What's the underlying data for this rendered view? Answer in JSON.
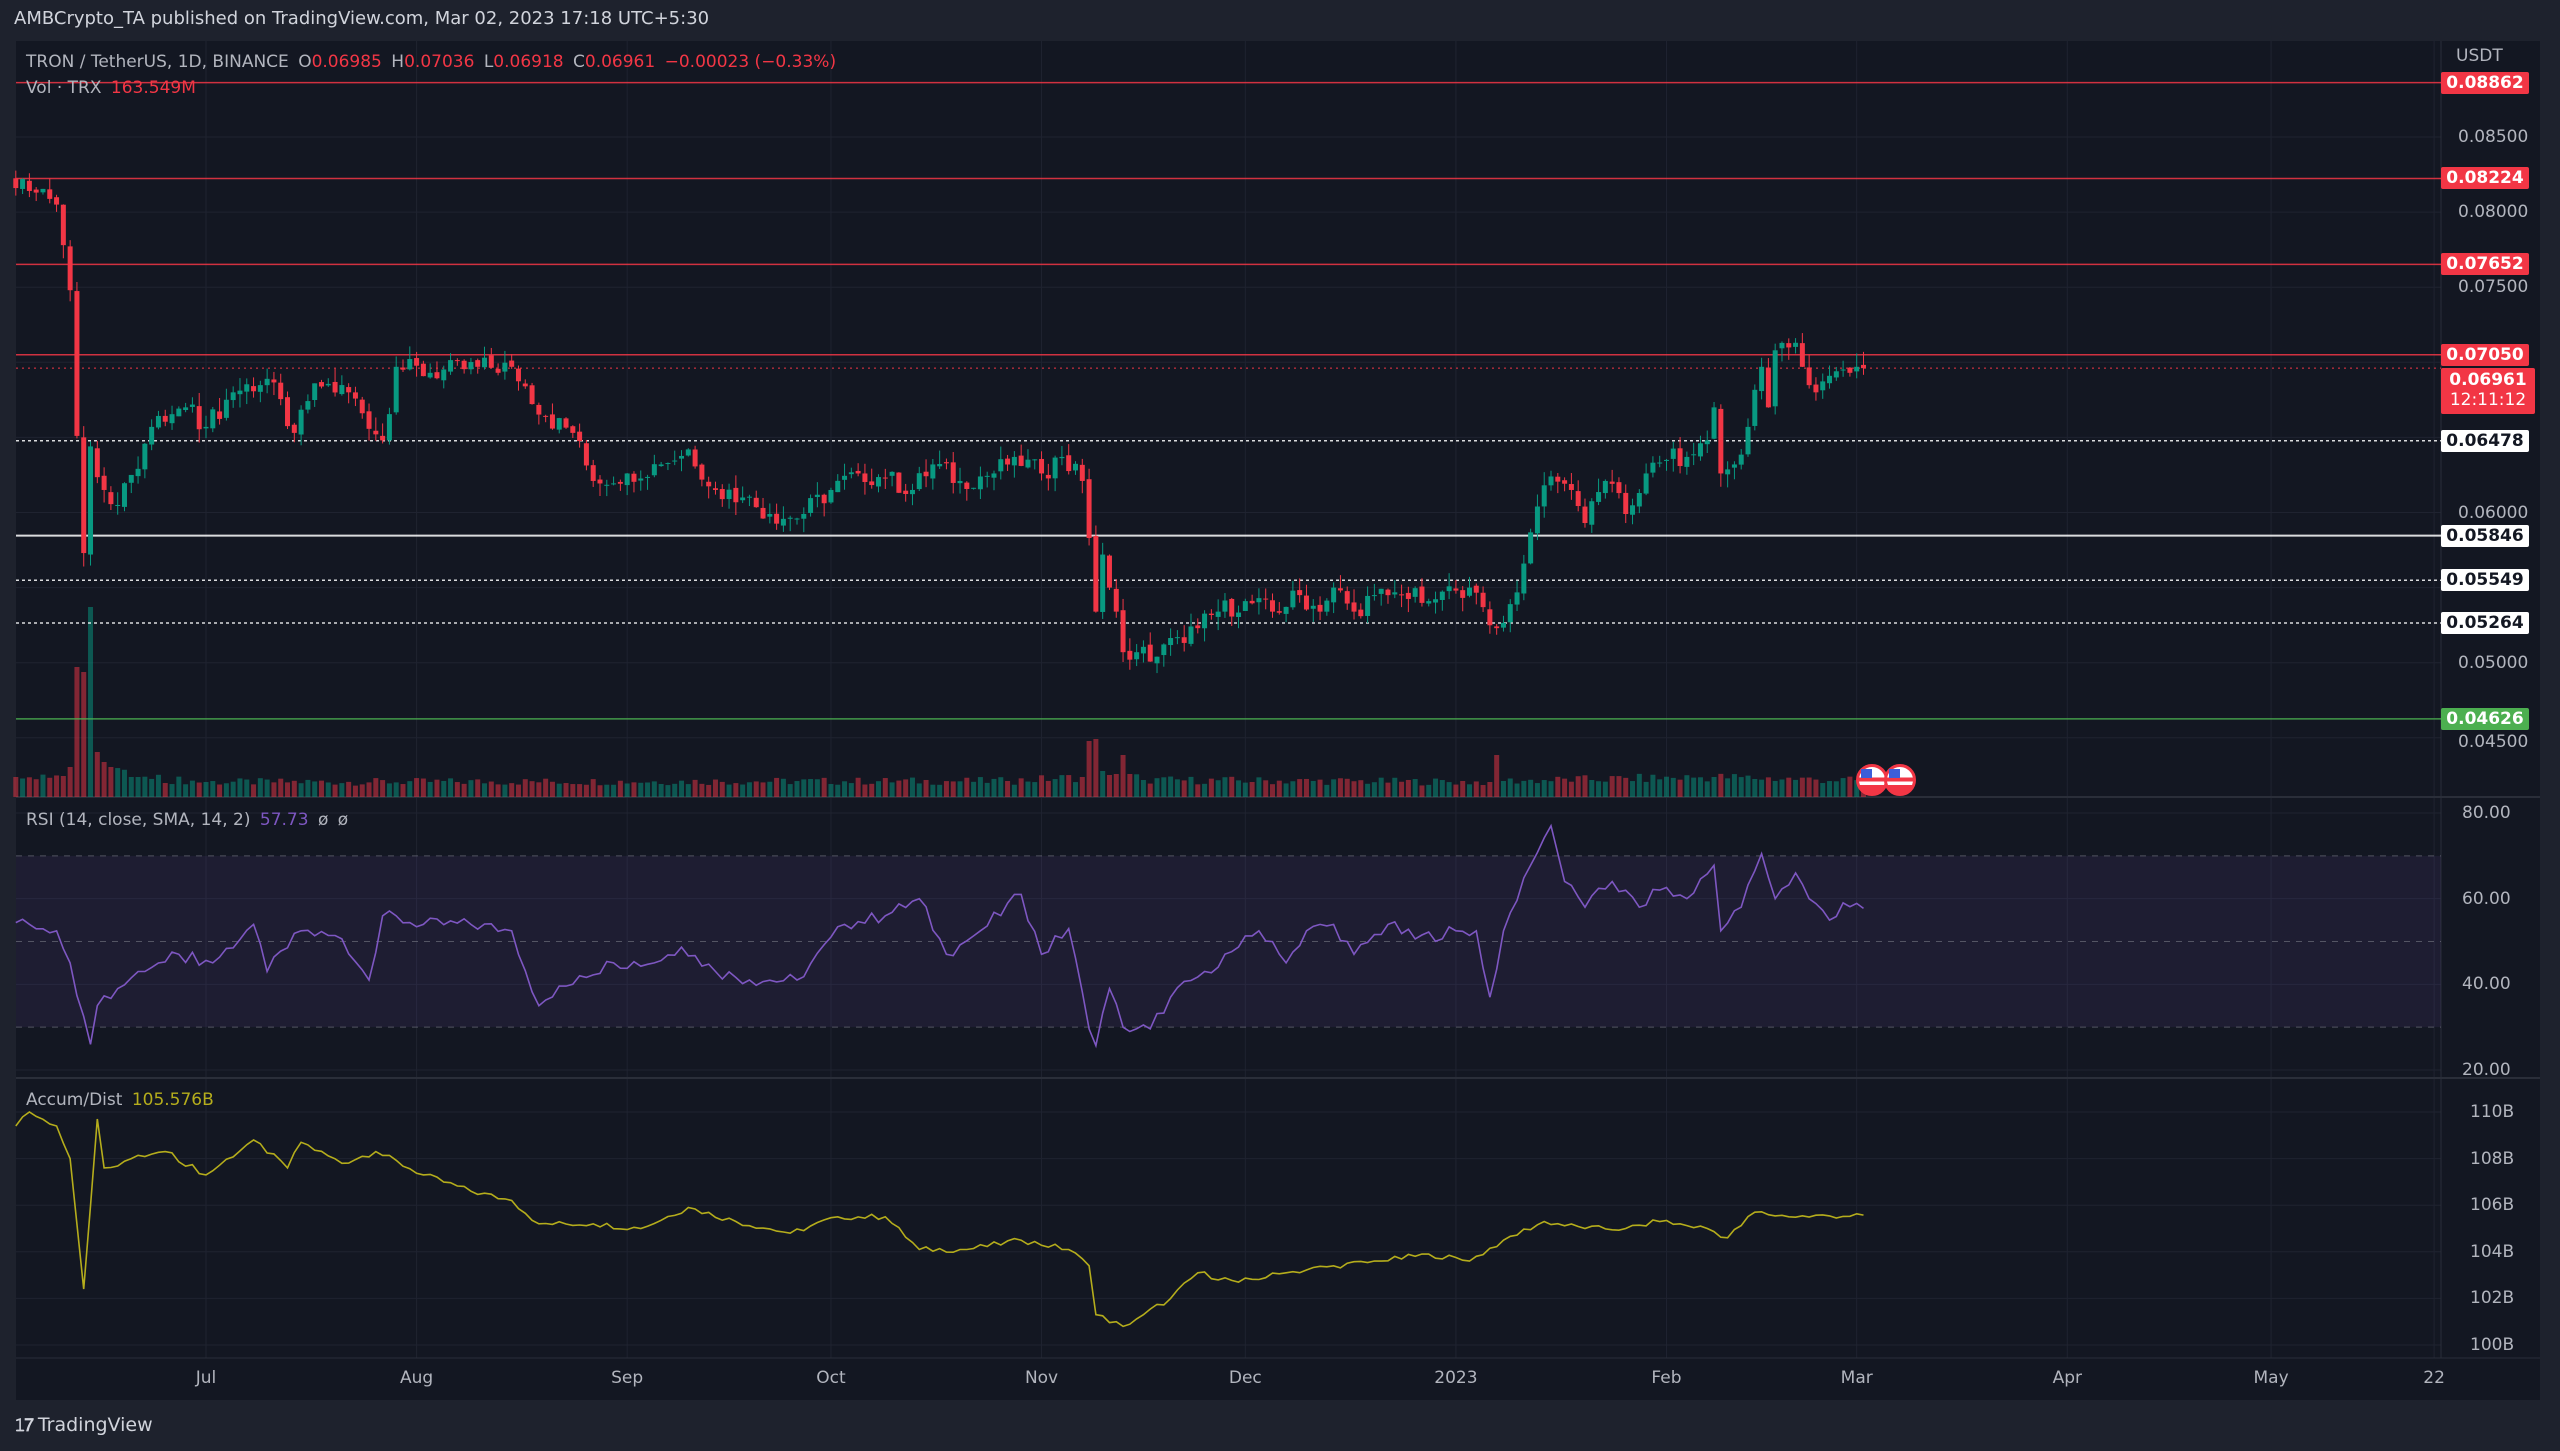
{
  "published": "AMBCrypto_TA published on TradingView.com, Mar 02, 2023 17:18 UTC+5:30",
  "legend": {
    "symbol": "TRON / TetherUS, 1D, BINANCE",
    "o_label": "O",
    "o": "0.06985",
    "h_label": "H",
    "h": "0.07036",
    "l_label": "L",
    "l": "0.06918",
    "c_label": "C",
    "c": "0.06961",
    "change": "−0.00023 (−0.33%)",
    "vol_label": "Vol · TRX",
    "vol": "163.549M"
  },
  "rsi": {
    "label": "RSI (14, close, SMA, 14, 2)",
    "value": "57.73",
    "na1": "ø",
    "na2": "ø",
    "ticks": [
      "80.00",
      "60.00",
      "40.00",
      "20.00"
    ]
  },
  "ad": {
    "label": "Accum/Dist",
    "value": "105.576B",
    "ticks": [
      "110B",
      "108B",
      "106B",
      "104B",
      "102B",
      "100B"
    ]
  },
  "price_axis": {
    "unit": "USDT",
    "ticks": [
      "0.08500",
      "0.08000",
      "0.07500",
      "0.06000",
      "0.05000",
      "0.04500"
    ]
  },
  "levels": [
    {
      "value": "0.08862",
      "color": "#f23645",
      "style": "solid"
    },
    {
      "value": "0.08224",
      "color": "#f23645",
      "style": "solid"
    },
    {
      "value": "0.07652",
      "color": "#f23645",
      "style": "solid"
    },
    {
      "value": "0.07050",
      "color": "#f23645",
      "style": "solid"
    },
    {
      "value": "0.06478",
      "color": "#ffffff",
      "style": "dotted"
    },
    {
      "value": "0.05846",
      "color": "#ffffff",
      "style": "solid"
    },
    {
      "value": "0.05549",
      "color": "#ffffff",
      "style": "dotted"
    },
    {
      "value": "0.05264",
      "color": "#ffffff",
      "style": "dotted"
    },
    {
      "value": "0.04626",
      "color": "#4caf50",
      "style": "solid"
    }
  ],
  "current": {
    "price": "0.06961",
    "countdown": "12:11:12"
  },
  "time_axis": [
    "Jul",
    "Aug",
    "Sep",
    "Oct",
    "Nov",
    "Dec",
    "2023",
    "Feb",
    "Mar",
    "Apr",
    "May",
    "22"
  ],
  "footer": {
    "logo": "TradingView"
  },
  "colors": {
    "up": "#089981",
    "down": "#f23645",
    "rsi": "#7e57c2",
    "ad": "#b5ad1c",
    "bg": "#131722"
  },
  "chart_data": {
    "type": "candlestick",
    "close_keypoints": [
      [
        "2022-06-03",
        0.0816
      ],
      [
        "2022-06-06",
        0.0813
      ],
      [
        "2022-06-09",
        0.0805
      ],
      [
        "2022-06-10",
        0.0778
      ],
      [
        "2022-06-11",
        0.0748
      ],
      [
        "2022-06-12",
        0.0651
      ],
      [
        "2022-06-13",
        0.0573
      ],
      [
        "2022-06-14",
        0.0644
      ],
      [
        "2022-06-16",
        0.0615
      ],
      [
        "2022-06-18",
        0.0605
      ],
      [
        "2022-06-20",
        0.0625
      ],
      [
        "2022-06-23",
        0.0657
      ],
      [
        "2022-06-28",
        0.067
      ],
      [
        "2022-07-01",
        0.0657
      ],
      [
        "2022-07-05",
        0.068
      ],
      [
        "2022-07-10",
        0.0689
      ],
      [
        "2022-07-14",
        0.0653
      ],
      [
        "2022-07-17",
        0.0686
      ],
      [
        "2022-07-22",
        0.068
      ],
      [
        "2022-07-27",
        0.0648
      ],
      [
        "2022-07-29",
        0.0697
      ],
      [
        "2022-08-03",
        0.0693
      ],
      [
        "2022-08-10",
        0.0697
      ],
      [
        "2022-08-15",
        0.0697
      ],
      [
        "2022-08-20",
        0.0664
      ],
      [
        "2022-08-24",
        0.0653
      ],
      [
        "2022-08-27",
        0.0621
      ],
      [
        "2022-09-01",
        0.0626
      ],
      [
        "2022-09-06",
        0.0632
      ],
      [
        "2022-09-10",
        0.0642
      ],
      [
        "2022-09-14",
        0.0615
      ],
      [
        "2022-09-18",
        0.061
      ],
      [
        "2022-09-22",
        0.0599
      ],
      [
        "2022-09-26",
        0.0596
      ],
      [
        "2022-10-01",
        0.0615
      ],
      [
        "2022-10-05",
        0.0626
      ],
      [
        "2022-10-09",
        0.0623
      ],
      [
        "2022-10-13",
        0.0615
      ],
      [
        "2022-10-16",
        0.0632
      ],
      [
        "2022-10-20",
        0.0621
      ],
      [
        "2022-10-25",
        0.0626
      ],
      [
        "2022-10-28",
        0.0637
      ],
      [
        "2022-11-01",
        0.0626
      ],
      [
        "2022-11-04",
        0.0637
      ],
      [
        "2022-11-07",
        0.0621
      ],
      [
        "2022-11-08",
        0.0583
      ],
      [
        "2022-11-09",
        0.0534
      ],
      [
        "2022-11-10",
        0.0572
      ],
      [
        "2022-11-11",
        0.055
      ],
      [
        "2022-11-12",
        0.0534
      ],
      [
        "2022-11-13",
        0.0507
      ],
      [
        "2022-11-15",
        0.0507
      ],
      [
        "2022-11-18",
        0.0504
      ],
      [
        "2022-11-21",
        0.0517
      ],
      [
        "2022-11-24",
        0.0523
      ],
      [
        "2022-11-27",
        0.0534
      ],
      [
        "2022-12-01",
        0.0541
      ],
      [
        "2022-12-05",
        0.0534
      ],
      [
        "2022-12-09",
        0.0545
      ],
      [
        "2022-12-12",
        0.0534
      ],
      [
        "2022-12-14",
        0.055
      ],
      [
        "2022-12-17",
        0.0534
      ],
      [
        "2022-12-20",
        0.0545
      ],
      [
        "2022-12-24",
        0.0545
      ],
      [
        "2022-12-28",
        0.0541
      ],
      [
        "2023-01-01",
        0.0548
      ],
      [
        "2023-01-03",
        0.055
      ],
      [
        "2023-01-05",
        0.0537
      ],
      [
        "2023-01-07",
        0.0523
      ],
      [
        "2023-01-09",
        0.0539
      ],
      [
        "2023-01-11",
        0.0566
      ],
      [
        "2023-01-13",
        0.0604
      ],
      [
        "2023-01-15",
        0.0624
      ],
      [
        "2023-01-18",
        0.0615
      ],
      [
        "2023-01-20",
        0.0593
      ],
      [
        "2023-01-23",
        0.0621
      ],
      [
        "2023-01-26",
        0.0599
      ],
      [
        "2023-01-29",
        0.0626
      ],
      [
        "2023-02-01",
        0.0635
      ],
      [
        "2023-02-04",
        0.0637
      ],
      [
        "2023-02-07",
        0.0648
      ],
      [
        "2023-02-08",
        0.067
      ],
      [
        "2023-02-09",
        0.0626
      ],
      [
        "2023-02-11",
        0.0632
      ],
      [
        "2023-02-13",
        0.0657
      ],
      [
        "2023-02-15",
        0.0697
      ],
      [
        "2023-02-16",
        0.067
      ],
      [
        "2023-02-17",
        0.0708
      ],
      [
        "2023-02-20",
        0.0713
      ],
      [
        "2023-02-21",
        0.0697
      ],
      [
        "2023-02-23",
        0.068
      ],
      [
        "2023-02-25",
        0.0691
      ],
      [
        "2023-02-28",
        0.0693
      ],
      [
        "2023-03-01",
        0.0697
      ],
      [
        "2023-03-02",
        0.06961
      ]
    ],
    "volume_keypoints_M": [
      [
        "2022-06-03",
        200
      ],
      [
        "2022-06-10",
        210
      ],
      [
        "2022-06-11",
        300
      ],
      [
        "2022-06-12",
        1300
      ],
      [
        "2022-06-13",
        1250
      ],
      [
        "2022-06-14",
        1900
      ],
      [
        "2022-06-15",
        450
      ],
      [
        "2022-06-16",
        350
      ],
      [
        "2022-06-17",
        300
      ],
      [
        "2022-06-20",
        200
      ],
      [
        "2022-07-01",
        150
      ],
      [
        "2022-10-27",
        160
      ],
      [
        "2022-11-07",
        200
      ],
      [
        "2022-11-08",
        560
      ],
      [
        "2022-11-09",
        580
      ],
      [
        "2022-11-10",
        260
      ],
      [
        "2022-11-11",
        220
      ],
      [
        "2022-11-12",
        230
      ],
      [
        "2022-11-13",
        420
      ],
      [
        "2022-11-14",
        230
      ],
      [
        "2022-11-16",
        170
      ],
      [
        "2023-01-06",
        150
      ],
      [
        "2023-01-07",
        420
      ],
      [
        "2023-01-08",
        160
      ],
      [
        "2023-02-08",
        200
      ],
      [
        "2023-03-02",
        163.549
      ]
    ],
    "rsi_keypoints": [
      [
        "2022-06-03",
        54.4
      ],
      [
        "2022-06-09",
        52.5
      ],
      [
        "2022-06-11",
        45
      ],
      [
        "2022-06-14",
        26
      ],
      [
        "2022-06-15",
        35
      ],
      [
        "2022-06-18",
        39
      ],
      [
        "2022-06-22",
        43
      ],
      [
        "2022-06-27",
        47
      ],
      [
        "2022-07-02",
        45
      ],
      [
        "2022-07-08",
        54
      ],
      [
        "2022-07-10",
        43
      ],
      [
        "2022-07-15",
        52.5
      ],
      [
        "2022-07-21",
        50.6
      ],
      [
        "2022-07-25",
        41
      ],
      [
        "2022-07-27",
        56
      ],
      [
        "2022-08-02",
        54
      ],
      [
        "2022-08-09",
        54
      ],
      [
        "2022-08-15",
        52.5
      ],
      [
        "2022-08-19",
        35
      ],
      [
        "2022-08-25",
        42
      ],
      [
        "2022-08-30",
        45
      ],
      [
        "2022-09-05",
        45
      ],
      [
        "2022-09-09",
        48.7
      ],
      [
        "2022-09-14",
        43
      ],
      [
        "2022-09-19",
        41
      ],
      [
        "2022-09-26",
        41
      ],
      [
        "2022-10-03",
        54
      ],
      [
        "2022-10-09",
        56
      ],
      [
        "2022-10-14",
        60
      ],
      [
        "2022-10-18",
        47
      ],
      [
        "2022-10-23",
        52.5
      ],
      [
        "2022-10-29",
        61
      ],
      [
        "2022-11-01",
        47
      ],
      [
        "2022-11-05",
        53
      ],
      [
        "2022-11-08",
        29.6
      ],
      [
        "2022-11-09",
        25.7
      ],
      [
        "2022-11-11",
        39
      ],
      [
        "2022-11-13",
        30
      ],
      [
        "2022-11-17",
        29.6
      ],
      [
        "2022-11-20",
        37
      ],
      [
        "2022-11-25",
        43
      ],
      [
        "2022-11-30",
        48.7
      ],
      [
        "2022-12-03",
        52.5
      ],
      [
        "2022-12-07",
        45
      ],
      [
        "2022-12-10",
        52.5
      ],
      [
        "2022-12-14",
        54
      ],
      [
        "2022-12-17",
        47
      ],
      [
        "2022-12-22",
        54
      ],
      [
        "2022-12-26",
        50.6
      ],
      [
        "2023-01-01",
        52.5
      ],
      [
        "2023-01-04",
        52.5
      ],
      [
        "2023-01-06",
        37
      ],
      [
        "2023-01-08",
        52.5
      ],
      [
        "2023-01-12",
        67.8
      ],
      [
        "2023-01-15",
        77
      ],
      [
        "2023-01-17",
        64
      ],
      [
        "2023-01-20",
        58
      ],
      [
        "2023-01-24",
        64
      ],
      [
        "2023-01-28",
        58
      ],
      [
        "2023-01-31",
        62
      ],
      [
        "2023-02-04",
        60
      ],
      [
        "2023-02-08",
        67.8
      ],
      [
        "2023-02-09",
        52.5
      ],
      [
        "2023-02-12",
        58
      ],
      [
        "2023-02-15",
        70.5
      ],
      [
        "2023-02-17",
        60
      ],
      [
        "2023-02-20",
        66
      ],
      [
        "2023-02-22",
        60
      ],
      [
        "2023-02-25",
        55
      ],
      [
        "2023-02-27",
        59
      ],
      [
        "2023-03-02",
        57.73
      ]
    ],
    "rsi_band": [
      30,
      70
    ],
    "rsi_mid": 50,
    "ad_keypoints_B": [
      [
        "2022-06-03",
        109.4
      ],
      [
        "2022-06-05",
        110
      ],
      [
        "2022-06-09",
        109.4
      ],
      [
        "2022-06-11",
        108
      ],
      [
        "2022-06-12",
        105.2
      ],
      [
        "2022-06-13",
        102.4
      ],
      [
        "2022-06-15",
        109.7
      ],
      [
        "2022-06-16",
        107.6
      ],
      [
        "2022-06-20",
        108
      ],
      [
        "2022-06-25",
        108.3
      ],
      [
        "2022-07-01",
        107.3
      ],
      [
        "2022-07-08",
        108.8
      ],
      [
        "2022-07-13",
        107.6
      ],
      [
        "2022-07-15",
        108.7
      ],
      [
        "2022-07-21",
        107.8
      ],
      [
        "2022-07-26",
        108.3
      ],
      [
        "2022-08-02",
        107.3
      ],
      [
        "2022-08-09",
        106.6
      ],
      [
        "2022-08-15",
        106.2
      ],
      [
        "2022-08-19",
        105.2
      ],
      [
        "2022-08-27",
        105.2
      ],
      [
        "2022-09-03",
        105
      ],
      [
        "2022-09-10",
        105.9
      ],
      [
        "2022-09-17",
        105.3
      ],
      [
        "2022-09-25",
        104.8
      ],
      [
        "2022-10-02",
        105.5
      ],
      [
        "2022-10-09",
        105.5
      ],
      [
        "2022-10-14",
        104.1
      ],
      [
        "2022-10-21",
        104.1
      ],
      [
        "2022-10-29",
        104.5
      ],
      [
        "2022-11-05",
        104.1
      ],
      [
        "2022-11-08",
        103.4
      ],
      [
        "2022-11-09",
        101.3
      ],
      [
        "2022-11-13",
        100.8
      ],
      [
        "2022-11-16",
        101.3
      ],
      [
        "2022-11-20",
        102
      ],
      [
        "2022-11-24",
        103.1
      ],
      [
        "2022-11-30",
        102.7
      ],
      [
        "2022-12-07",
        103.1
      ],
      [
        "2022-12-14",
        103.4
      ],
      [
        "2022-12-21",
        103.6
      ],
      [
        "2022-12-28",
        103.9
      ],
      [
        "2023-01-03",
        103.6
      ],
      [
        "2023-01-08",
        104.5
      ],
      [
        "2023-01-14",
        105.3
      ],
      [
        "2023-01-20",
        105
      ],
      [
        "2023-01-26",
        105
      ],
      [
        "2023-01-31",
        105.3
      ],
      [
        "2023-02-07",
        105
      ],
      [
        "2023-02-10",
        104.6
      ],
      [
        "2023-02-14",
        105.7
      ],
      [
        "2023-02-19",
        105.5
      ],
      [
        "2023-03-02",
        105.576
      ]
    ],
    "price_range": [
      0.0435,
      0.0895
    ],
    "rsi_range": [
      20,
      80
    ],
    "ad_range_B": [
      100,
      110
    ],
    "x_range": [
      "2022-06-03",
      "2023-05-25"
    ]
  }
}
